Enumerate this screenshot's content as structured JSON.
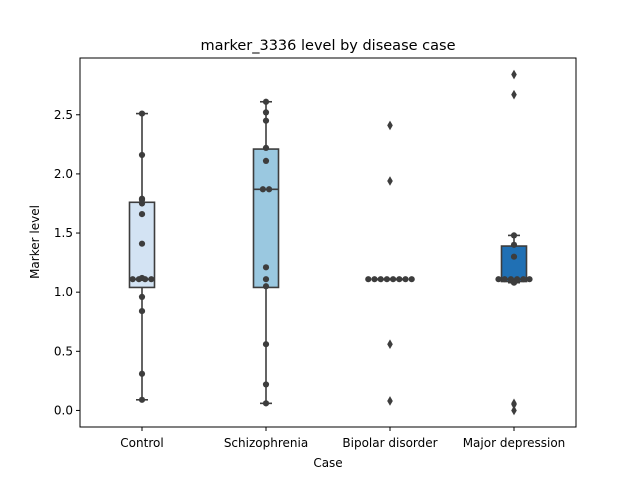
{
  "chart_data": {
    "type": "box",
    "title": "marker_3336 level by disease case",
    "xlabel": "Case",
    "ylabel": "Marker level",
    "ylim": [
      -0.14,
      2.98
    ],
    "yticks": [
      "0.0",
      "0.5",
      "1.0",
      "1.5",
      "2.0",
      "2.5"
    ],
    "yticks_values": [
      0.0,
      0.5,
      1.0,
      1.5,
      2.0,
      2.5
    ],
    "grid": false,
    "legend": "none",
    "categories": [
      "Control",
      "Schizophrenia",
      "Bipolar disorder",
      "Major depression"
    ],
    "groups": [
      {
        "name": "Control",
        "color": "#d3e3f3",
        "box": {
          "q1": 1.04,
          "median": 1.11,
          "q3": 1.76,
          "whisker_low": 0.09,
          "whisker_high": 2.51
        },
        "points": [
          2.51,
          2.16,
          1.79,
          1.78,
          1.75,
          1.66,
          1.41,
          1.12,
          1.11,
          1.11,
          1.11,
          1.11,
          0.96,
          0.84,
          0.31,
          0.09
        ],
        "outliers": []
      },
      {
        "name": "Schizophrenia",
        "color": "#9ac8e0",
        "box": {
          "q1": 1.04,
          "median": 1.87,
          "q3": 2.21,
          "whisker_low": 0.06,
          "whisker_high": 2.61
        },
        "points": [
          2.61,
          2.52,
          2.45,
          2.22,
          2.11,
          1.87,
          1.87,
          1.21,
          1.11,
          1.05,
          0.56,
          0.22,
          0.06
        ],
        "outliers": []
      },
      {
        "name": "Bipolar disorder",
        "color": "#5aa2cf",
        "box": {
          "q1": 1.11,
          "median": 1.11,
          "q3": 1.11,
          "whisker_low": 1.11,
          "whisker_high": 1.11
        },
        "points": [
          1.11,
          1.11,
          1.11,
          1.11,
          1.11,
          1.11,
          1.11,
          1.11
        ],
        "outliers": [
          2.41,
          1.94,
          0.56,
          0.08
        ]
      },
      {
        "name": "Major depression",
        "color": "#2070b4",
        "box": {
          "q1": 1.09,
          "median": 1.11,
          "q3": 1.39,
          "whisker_low": 1.08,
          "whisker_high": 1.48
        },
        "points": [
          1.48,
          1.4,
          1.3,
          1.11,
          1.11,
          1.11,
          1.11,
          1.11,
          1.11,
          1.08
        ],
        "outliers": [
          2.84,
          2.67,
          0.06,
          0.05,
          0.0
        ]
      }
    ]
  }
}
